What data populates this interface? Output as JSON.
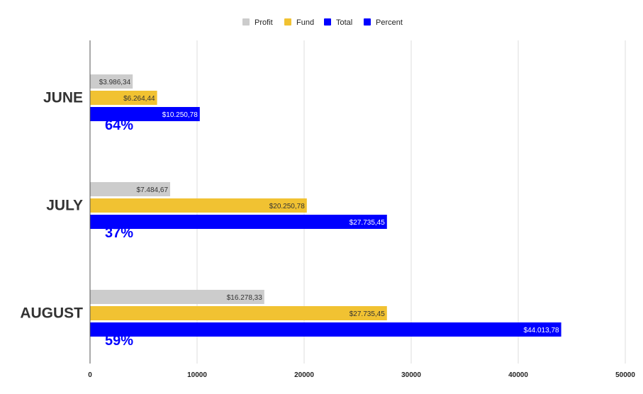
{
  "chart_data": {
    "type": "bar",
    "orientation": "horizontal",
    "categories": [
      "JUNE",
      "JULY",
      "AUGUST"
    ],
    "series": [
      {
        "name": "Profit",
        "color": "#cccccc",
        "values": [
          3986.34,
          7484.67,
          16278.33
        ],
        "labels": [
          "$3.986,34",
          "$7.484,67",
          "$16.278,33"
        ]
      },
      {
        "name": "Fund",
        "color": "#f1c232",
        "values": [
          6264.44,
          20250.78,
          27735.45
        ],
        "labels": [
          "$6.264,44",
          "$20.250,78",
          "$27.735,45"
        ]
      },
      {
        "name": "Total",
        "color": "#0000ff",
        "values": [
          10250.78,
          27735.45,
          44013.78
        ],
        "labels": [
          "$10.250,78",
          "$27.735,45",
          "$44.013,78"
        ]
      },
      {
        "name": "Percent",
        "color": "#0000ff",
        "values": [
          64,
          37,
          59
        ],
        "labels": [
          "64%",
          "37%",
          "59%"
        ]
      }
    ],
    "xlim": [
      0,
      50000
    ],
    "xticks": [
      "0",
      "10000",
      "20000",
      "30000",
      "40000",
      "50000"
    ],
    "grid": true,
    "legend": "top-center"
  }
}
